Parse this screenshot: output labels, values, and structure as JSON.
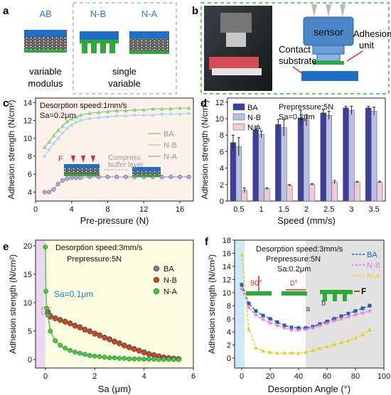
{
  "panels": {
    "a": {
      "letter": "a",
      "labels": {
        "ab": "AB",
        "nb": "N-B",
        "na": "N-A"
      },
      "caption_left": [
        "variable",
        "modulus"
      ],
      "caption_right": [
        "single",
        "variable"
      ]
    },
    "b": {
      "letter": "b",
      "labels": {
        "sensor": "sensor",
        "adhesion": [
          "Adhesion",
          "unit"
        ],
        "contact": [
          "Contact",
          "substrate"
        ]
      }
    }
  },
  "colors": {
    "BA": "#7f7f7f",
    "NB": "#c04a2a",
    "NA": "#43c843",
    "c_BA": "#8fcf8a",
    "c_NB": "#a8d8e8",
    "c_NA": "#b3a6e0",
    "d_BA": "#3d3f99",
    "d_NB": "#b9bfe6",
    "d_NA": "#f2c9da",
    "f_BA": "#2a5ca8",
    "f_NB": "#e37fd3",
    "f_NA": "#e3d42a"
  },
  "chart_data": [
    {
      "panel": "c",
      "type": "line",
      "xlabel": "Pre-pressure (N)",
      "ylabel": "Adhesion strength (N/cm²)",
      "xlim": [
        0,
        17.5
      ],
      "ylim": [
        3,
        14.5
      ],
      "xticks": [
        0,
        4,
        8,
        12,
        16
      ],
      "yticks": [
        4,
        6,
        8,
        10,
        12,
        14
      ],
      "annotations": [
        "Desorption speed:1mm/s",
        "Sa=0.2μm",
        "F",
        "Compress",
        "buffer layer"
      ],
      "legend_position": "right",
      "x": [
        1,
        1.5,
        2,
        2.5,
        3,
        3.5,
        4,
        4.5,
        5,
        6,
        7,
        8,
        9,
        10,
        11,
        12,
        13,
        14,
        15,
        16,
        17
      ],
      "series": [
        {
          "name": "BA",
          "values": [
            9.0,
            9.6,
            10.3,
            10.9,
            11.4,
            11.9,
            12.2,
            12.4,
            12.6,
            12.8,
            12.9,
            13.0,
            13.1,
            13.1,
            13.2,
            13.2,
            13.3,
            13.3,
            13.3,
            13.4,
            13.4
          ]
        },
        {
          "name": "N-B",
          "values": [
            8.0,
            8.7,
            9.4,
            10.0,
            10.6,
            11.1,
            11.5,
            11.8,
            12.0,
            12.2,
            12.3,
            12.4,
            12.5,
            12.5,
            12.6,
            12.6,
            12.6,
            12.7,
            12.7,
            12.7,
            12.8
          ]
        },
        {
          "name": "N-A",
          "values": [
            4.0,
            4.0,
            4.3,
            4.9,
            5.3,
            5.5,
            5.6,
            5.6,
            5.6,
            5.7,
            5.7,
            5.7,
            5.7,
            5.7,
            5.7,
            5.7,
            5.7,
            5.7,
            5.7,
            5.7,
            5.7
          ]
        }
      ]
    },
    {
      "panel": "d",
      "type": "bar",
      "xlabel": "Speed (mm/s)",
      "ylabel": "Adhesion strength (N/cm²)",
      "ylim": [
        0,
        12.5
      ],
      "yticks": [
        0,
        2,
        4,
        6,
        8,
        10,
        12
      ],
      "annotations": [
        "Prepressure:5N",
        "Sa=0.2μm"
      ],
      "legend_position": "top-left",
      "categories": [
        "0.5",
        "1",
        "1.5",
        "2",
        "2.5",
        "3",
        "3.5"
      ],
      "series": [
        {
          "name": "BA",
          "values": [
            7.1,
            8.7,
            9.3,
            10.1,
            10.7,
            11.3,
            11.3
          ],
          "errors": [
            0.9,
            0.4,
            0.6,
            0.9,
            0.4,
            0.2,
            0.2
          ]
        },
        {
          "name": "N-B",
          "values": [
            6.6,
            8.1,
            8.9,
            9.8,
            10.4,
            11.0,
            10.9
          ],
          "errors": [
            1.1,
            0.4,
            1.0,
            0.7,
            0.5,
            0.5,
            0.5
          ]
        },
        {
          "name": "N-A",
          "values": [
            1.3,
            1.5,
            1.9,
            2.0,
            2.3,
            2.3,
            2.3
          ],
          "errors": [
            0.3,
            0.1,
            0.1,
            0.1,
            0.2,
            0.1,
            0.1
          ]
        }
      ]
    },
    {
      "panel": "e",
      "type": "line",
      "xlabel": "Sa (μm)",
      "ylabel": "Adhesion strength (N/cm²)",
      "xlim": [
        -0.4,
        6
      ],
      "ylim": [
        -1.5,
        21
      ],
      "xticks": [
        0,
        2,
        4,
        6
      ],
      "yticks": [
        0,
        5,
        10,
        15,
        20
      ],
      "annotations": [
        "Desorption speed:3mm/s",
        "Prepressure:5N",
        "Sa=0.1μm"
      ],
      "legend_position": "right",
      "series": [
        {
          "name": "BA",
          "x": [
            0.1,
            0.2,
            0.4,
            0.6,
            0.8,
            1.0,
            1.2,
            1.4,
            1.6,
            1.8,
            2.0,
            2.2,
            2.4,
            2.6,
            2.8,
            3.0,
            3.2,
            3.4,
            3.6,
            3.8,
            4.0,
            4.2,
            4.4,
            4.6,
            4.8,
            5.0,
            5.2,
            5.4
          ],
          "values": [
            8.4,
            7.7,
            7.3,
            7.0,
            6.7,
            6.4,
            6.0,
            5.7,
            5.3,
            5.0,
            4.6,
            4.3,
            3.9,
            3.6,
            3.2,
            2.9,
            2.5,
            2.2,
            1.9,
            1.6,
            1.3,
            1.0,
            0.8,
            0.6,
            0.4,
            0.3,
            0.2,
            0.1
          ]
        },
        {
          "name": "N-B",
          "x": [
            0.1,
            0.2,
            0.4,
            0.6,
            0.8,
            1.0,
            1.2,
            1.4,
            1.6,
            1.8,
            2.0,
            2.2,
            2.4,
            2.6,
            2.8,
            3.0,
            3.2,
            3.4,
            3.6,
            3.8,
            4.0,
            4.2,
            4.4,
            4.6,
            4.8,
            5.0,
            5.2,
            5.4
          ],
          "values": [
            8.2,
            7.5,
            7.2,
            6.9,
            6.6,
            6.3,
            5.9,
            5.6,
            5.2,
            4.9,
            4.5,
            4.2,
            3.8,
            3.5,
            3.1,
            2.8,
            2.4,
            2.1,
            1.8,
            1.5,
            1.2,
            0.9,
            0.7,
            0.5,
            0.3,
            0.2,
            0.1,
            0.05
          ]
        },
        {
          "name": "N-A",
          "x": [
            0,
            0.02,
            0.05,
            0.1,
            0.2,
            0.4,
            0.6,
            0.8,
            1.0,
            1.2,
            1.4,
            1.6,
            1.8,
            2.0,
            2.2,
            2.4,
            2.6,
            2.8,
            3.0,
            3.2,
            3.4,
            3.6,
            3.8,
            4.0,
            4.2,
            4.4,
            4.6,
            4.8,
            5.0,
            5.2,
            5.4
          ],
          "values": [
            19.8,
            12.0,
            9.0,
            7.8,
            5.0,
            3.3,
            2.5,
            2.0,
            1.6,
            1.3,
            1.1,
            0.9,
            0.7,
            0.6,
            0.5,
            0.4,
            0.3,
            0.3,
            0.2,
            0.2,
            0.1,
            0.1,
            0.1,
            0.05,
            0.05,
            0.05,
            0,
            0,
            0,
            0,
            0
          ]
        }
      ]
    },
    {
      "panel": "f",
      "type": "line",
      "xlabel": "Desorption Angle (°)",
      "ylabel": "Adhesion strength (N/cm²)",
      "xlim": [
        -5,
        100
      ],
      "ylim": [
        -1.5,
        18
      ],
      "xticks": [
        0,
        20,
        40,
        60,
        80,
        100
      ],
      "yticks": [
        0,
        2,
        4,
        6,
        8,
        10,
        12,
        14,
        16,
        18
      ],
      "annotations": [
        "Desorption speed:3mm/s",
        "Prepressure:5N",
        "Sa:0.2μm",
        "90°",
        "0°",
        "F",
        "a",
        "b"
      ],
      "legend_position": "top-right",
      "x": [
        0,
        5,
        10,
        15,
        20,
        25,
        30,
        35,
        40,
        45,
        50,
        55,
        60,
        65,
        70,
        75,
        80,
        85,
        90
      ],
      "series": [
        {
          "name": "BA",
          "values": [
            11.2,
            8.3,
            7.2,
            6.5,
            6.0,
            5.5,
            5.0,
            4.7,
            4.6,
            4.6,
            4.8,
            5.2,
            5.6,
            6.0,
            6.4,
            6.8,
            7.2,
            7.6,
            8.0
          ]
        },
        {
          "name": "N-B",
          "values": [
            10.6,
            7.7,
            6.6,
            5.9,
            5.4,
            5.0,
            4.6,
            4.3,
            4.3,
            4.4,
            4.6,
            5.0,
            5.3,
            5.7,
            6.0,
            6.3,
            6.6,
            6.9,
            7.2
          ]
        },
        {
          "name": "N-A",
          "values": [
            15.8,
            4.4,
            1.6,
            1.1,
            0.9,
            0.8,
            0.8,
            0.8,
            0.8,
            0.9,
            1.2,
            1.5,
            1.8,
            2.1,
            2.4,
            2.7,
            3.1,
            3.6,
            4.3
          ]
        }
      ]
    }
  ]
}
